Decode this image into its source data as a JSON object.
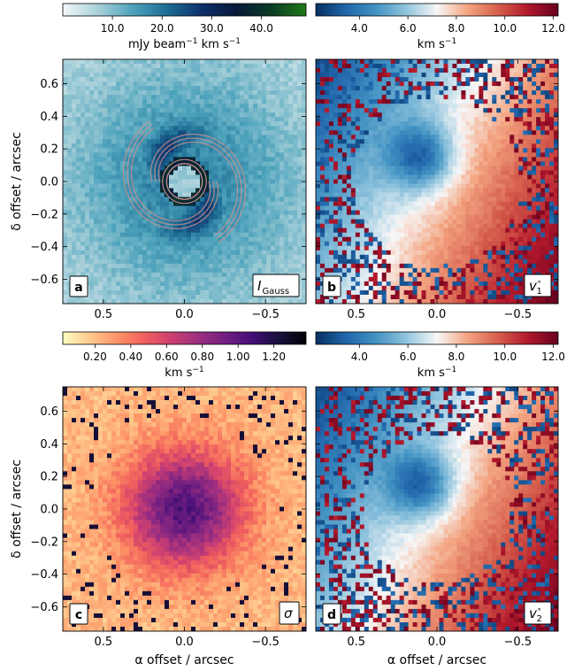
{
  "chart_data": [
    {
      "type": "heatmap",
      "panel_label": "a",
      "quantity_label": "I",
      "quantity_subscript": "Gauss",
      "colormap": "ice blue to deep navy to green",
      "colorbar": {
        "label": "mJy beam⁻¹ km s⁻¹",
        "ticks": [
          10.0,
          20.0,
          30.0,
          40.0
        ],
        "tick_labels": [
          "10.0",
          "20.0",
          "30.0",
          "40.0"
        ],
        "range": [
          0,
          49
        ],
        "colors": [
          "#f2f7f8",
          "#a9d1da",
          "#4ea3bc",
          "#1d6c94",
          "#0d2f6a",
          "#071a3a",
          "#0a3b23",
          "#1f7a16"
        ]
      },
      "xlabel": "",
      "ylabel": "δ  offset / arcsec",
      "xlim": [
        0.75,
        -0.75
      ],
      "ylim": [
        -0.75,
        0.75
      ],
      "xticks": [
        0.5,
        0.0,
        -0.5
      ],
      "xtick_labels": [
        "0.5",
        "0.0",
        "−0.5"
      ],
      "yticks": [
        0.6,
        0.4,
        0.2,
        0.0,
        -0.2,
        -0.4,
        -0.6
      ],
      "ytick_labels": [
        "0.6",
        "0.4",
        "0.2",
        "0.0",
        "−0.2",
        "−0.4",
        "−0.6"
      ],
      "contours": "spiral arms",
      "contour_color": "#c9908e"
    },
    {
      "type": "heatmap",
      "panel_label": "b",
      "quantity_label": "v",
      "quantity_subscript": "1",
      "quantity_superscript": "∘",
      "colormap": "diverging blue-white-red",
      "colorbar": {
        "label": "km s⁻¹",
        "ticks": [
          4.0,
          6.0,
          8.0,
          10.0,
          12.0
        ],
        "tick_labels": [
          "4.0",
          "6.0",
          "8.0",
          "10.0",
          "12.0"
        ],
        "range": [
          2.2,
          12.2
        ],
        "colors": [
          "#053061",
          "#2166ac",
          "#4393c3",
          "#92c5de",
          "#f7f7f7",
          "#f4a582",
          "#d6604d",
          "#b2182b",
          "#67001f"
        ]
      },
      "xlabel": "",
      "ylabel": "",
      "xlim": [
        0.75,
        -0.75
      ],
      "ylim": [
        -0.75,
        0.75
      ],
      "xticks": [
        0.5,
        0.0,
        -0.5
      ],
      "xtick_labels": [
        "0.5",
        "0.0",
        "−0.5"
      ],
      "yticks": [
        0.6,
        0.4,
        0.2,
        0.0,
        -0.2,
        -0.4,
        -0.6
      ]
    },
    {
      "type": "heatmap",
      "panel_label": "c",
      "quantity_label": "σ",
      "colormap": "magma reversed",
      "colorbar": {
        "label": "km s⁻¹",
        "ticks": [
          0.2,
          0.4,
          0.6,
          0.8,
          1.0,
          1.2
        ],
        "tick_labels": [
          "0.20",
          "0.40",
          "0.60",
          "0.80",
          "1.00",
          "1.20"
        ],
        "range": [
          0.02,
          1.38
        ],
        "colors": [
          "#fcfdbf",
          "#fec98d",
          "#fd9567",
          "#f1605d",
          "#cd4071",
          "#9e2f7f",
          "#721f81",
          "#440f76",
          "#180f3d",
          "#000004"
        ]
      },
      "xlabel": "α  offset / arcsec",
      "ylabel": "δ  offset / arcsec",
      "xlim": [
        0.75,
        -0.75
      ],
      "ylim": [
        -0.75,
        0.75
      ],
      "xticks": [
        0.5,
        0.0,
        -0.5
      ],
      "xtick_labels": [
        "0.5",
        "0.0",
        "−0.5"
      ],
      "yticks": [
        0.6,
        0.4,
        0.2,
        0.0,
        -0.2,
        -0.4,
        -0.6
      ],
      "ytick_labels": [
        "0.6",
        "0.4",
        "0.2",
        "0.0",
        "−0.2",
        "−0.4",
        "−0.6"
      ]
    },
    {
      "type": "heatmap",
      "panel_label": "d",
      "quantity_label": "v",
      "quantity_subscript": "2",
      "quantity_superscript": "∘",
      "colormap": "diverging blue-white-red",
      "colorbar": {
        "label": "km s⁻¹",
        "ticks": [
          4.0,
          6.0,
          8.0,
          10.0,
          12.0
        ],
        "tick_labels": [
          "4.0",
          "6.0",
          "8.0",
          "10.0",
          "12.0"
        ],
        "range": [
          2.2,
          12.2
        ],
        "colors": [
          "#053061",
          "#2166ac",
          "#4393c3",
          "#92c5de",
          "#f7f7f7",
          "#f4a582",
          "#d6604d",
          "#b2182b",
          "#67001f"
        ]
      },
      "xlabel": "α  offset / arcsec",
      "ylabel": "",
      "xlim": [
        0.75,
        -0.75
      ],
      "ylim": [
        -0.75,
        0.75
      ],
      "xticks": [
        0.5,
        0.0,
        -0.5
      ],
      "xtick_labels": [
        "0.5",
        "0.0",
        "−0.5"
      ],
      "yticks": [
        0.6,
        0.4,
        0.2,
        0.0,
        -0.2,
        -0.4,
        -0.6
      ]
    }
  ]
}
